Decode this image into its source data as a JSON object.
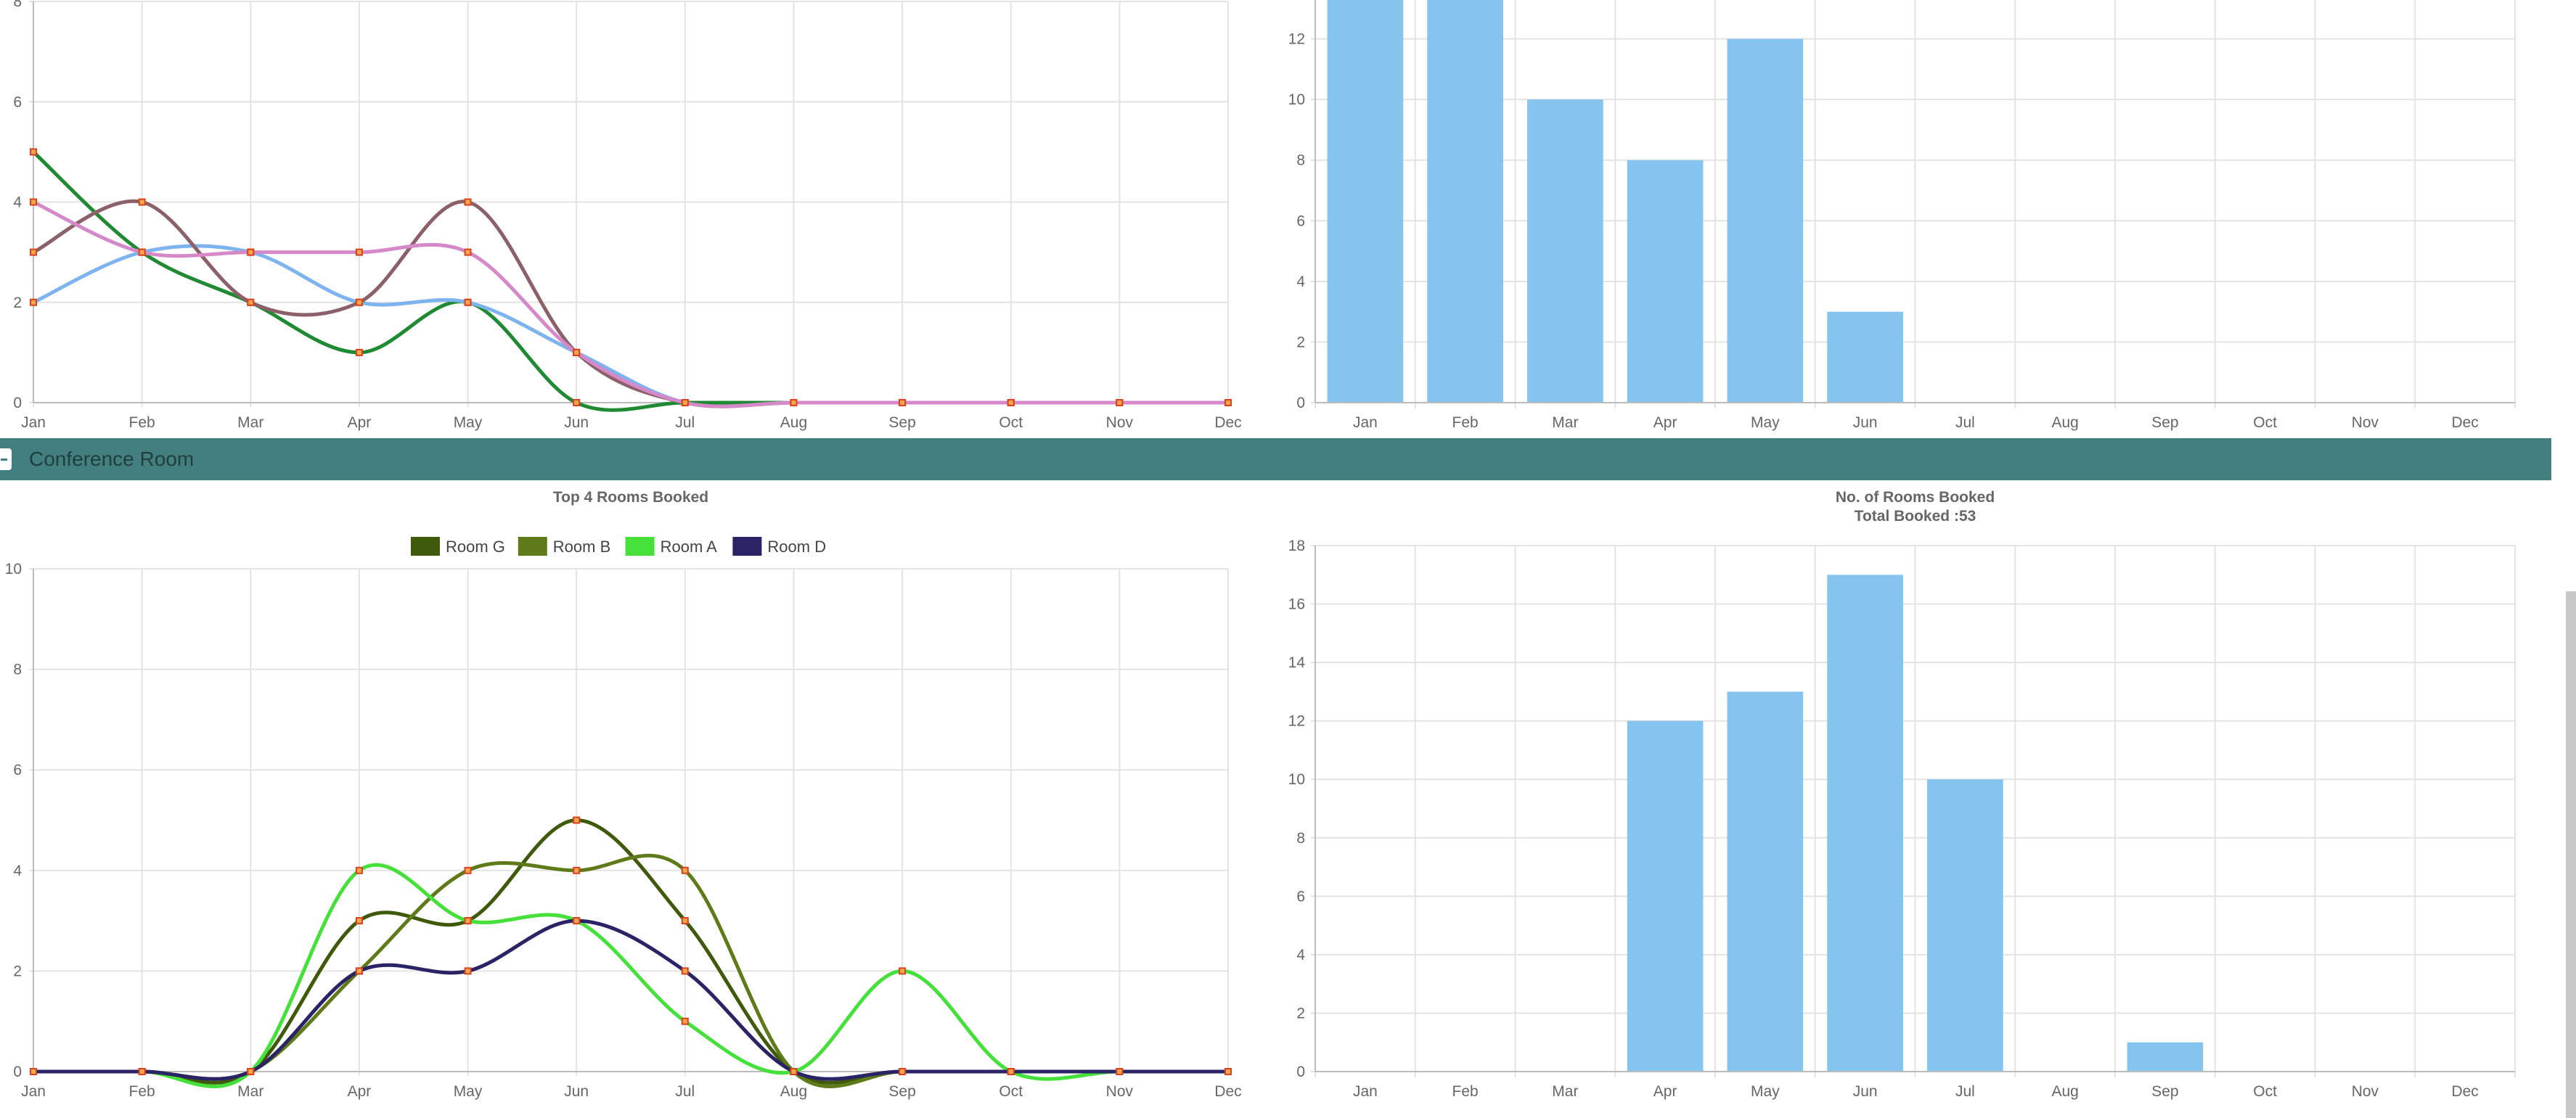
{
  "section": {
    "title": "Conference Room"
  },
  "charts": [
    {
      "id": "top-left",
      "type": "line",
      "title": [],
      "categories": [
        "Jan",
        "Feb",
        "Mar",
        "Apr",
        "May",
        "Jun",
        "Jul",
        "Aug",
        "Sep",
        "Oct",
        "Nov",
        "Dec"
      ],
      "ylim": [
        0,
        8
      ],
      "yticks": [
        0,
        2,
        4,
        6,
        8
      ],
      "grid": true,
      "legend": [],
      "series": [
        {
          "color": "#1f8a33",
          "values": [
            5,
            3,
            2,
            1,
            2,
            0,
            0,
            0,
            0,
            0,
            0,
            0
          ]
        },
        {
          "color": "#7db4ef",
          "values": [
            2,
            3,
            3,
            2,
            2,
            1,
            0,
            0,
            0,
            0,
            0,
            0
          ]
        },
        {
          "color": "#8c6069",
          "values": [
            3,
            4,
            2,
            2,
            4,
            1,
            0,
            0,
            0,
            0,
            0,
            0
          ]
        },
        {
          "color": "#d589c8",
          "values": [
            4,
            3,
            3,
            3,
            3,
            1,
            0,
            0,
            0,
            0,
            0,
            0
          ]
        }
      ]
    },
    {
      "id": "top-right",
      "type": "bar",
      "title": [],
      "categories": [
        "Jan",
        "Feb",
        "Mar",
        "Apr",
        "May",
        "Jun",
        "Jul",
        "Aug",
        "Sep",
        "Oct",
        "Nov",
        "Dec"
      ],
      "values": [
        14,
        14,
        10,
        8,
        12,
        3,
        0,
        0,
        0,
        0,
        0,
        0
      ],
      "ylim": [
        0,
        14
      ],
      "yticks": [
        0,
        2,
        4,
        6,
        8,
        10,
        12
      ],
      "grid": true,
      "bar_color": "#86c4f0"
    },
    {
      "id": "bottom-left",
      "type": "line",
      "title": [
        "Top 4 Rooms Booked"
      ],
      "categories": [
        "Jan",
        "Feb",
        "Mar",
        "Apr",
        "May",
        "Jun",
        "Jul",
        "Aug",
        "Sep",
        "Oct",
        "Nov",
        "Dec"
      ],
      "ylim": [
        0,
        10
      ],
      "yticks": [
        0,
        2,
        4,
        6,
        8,
        10
      ],
      "grid": true,
      "legend": [
        {
          "name": "Room G",
          "color": "#3f5a0b"
        },
        {
          "name": "Room B",
          "color": "#5f7a18"
        },
        {
          "name": "Room A",
          "color": "#45e03a"
        },
        {
          "name": "Room D",
          "color": "#2a2366"
        }
      ],
      "series": [
        {
          "name": "Room G",
          "color": "#3f5a0b",
          "values": [
            0,
            0,
            0,
            3,
            3,
            5,
            3,
            0,
            0,
            0,
            0,
            0
          ]
        },
        {
          "name": "Room B",
          "color": "#5f7a18",
          "values": [
            0,
            0,
            0,
            2,
            4,
            4,
            4,
            0,
            0,
            0,
            0,
            0
          ]
        },
        {
          "name": "Room A",
          "color": "#45e03a",
          "values": [
            0,
            0,
            0,
            4,
            3,
            3,
            1,
            0,
            2,
            0,
            0,
            0
          ]
        },
        {
          "name": "Room D",
          "color": "#2a2366",
          "values": [
            0,
            0,
            0,
            2,
            2,
            3,
            2,
            0,
            0,
            0,
            0,
            0
          ]
        }
      ]
    },
    {
      "id": "bottom-right",
      "type": "bar",
      "title": [
        "No. of Rooms Booked",
        "Total Booked :53"
      ],
      "categories": [
        "Jan",
        "Feb",
        "Mar",
        "Apr",
        "May",
        "Jun",
        "Jul",
        "Aug",
        "Sep",
        "Oct",
        "Nov",
        "Dec"
      ],
      "values": [
        0,
        0,
        0,
        12,
        13,
        17,
        10,
        0,
        1,
        0,
        0,
        0
      ],
      "ylim": [
        0,
        18
      ],
      "yticks": [
        0,
        2,
        4,
        6,
        8,
        10,
        12,
        14,
        16,
        18
      ],
      "grid": true,
      "bar_color": "#86c4f0"
    }
  ]
}
